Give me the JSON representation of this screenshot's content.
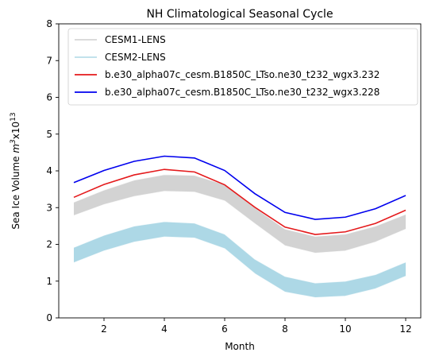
{
  "chart_data": {
    "type": "line",
    "title": "NH Climatological Seasonal Cycle",
    "xlabel": "Month",
    "ylabel_main": "Sea Ice Volume ",
    "ylabel_unit_base": "m",
    "ylabel_unit_sup": "3",
    "ylabel_mult": "x10",
    "ylabel_mult_sup": "13",
    "xlim": [
      0.5,
      12.5
    ],
    "ylim": [
      0,
      8
    ],
    "xticks": [
      2,
      4,
      6,
      8,
      10,
      12
    ],
    "yticks": [
      0,
      1,
      2,
      3,
      4,
      5,
      6,
      7,
      8
    ],
    "grid": false,
    "legend_position": "top-right",
    "x": [
      1,
      2,
      3,
      4,
      5,
      6,
      7,
      8,
      9,
      10,
      11,
      12
    ],
    "bands": [
      {
        "name": "CESM1-LENS",
        "color": "#d3d3d3",
        "lower": [
          2.78,
          3.08,
          3.3,
          3.44,
          3.42,
          3.18,
          2.56,
          1.96,
          1.76,
          1.82,
          2.06,
          2.41
        ],
        "upper": [
          3.15,
          3.48,
          3.75,
          3.9,
          3.88,
          3.63,
          3.0,
          2.42,
          2.22,
          2.28,
          2.5,
          2.82
        ]
      },
      {
        "name": "CESM2-LENS",
        "color": "#add8e6",
        "lower": [
          1.5,
          1.82,
          2.06,
          2.2,
          2.17,
          1.88,
          1.2,
          0.7,
          0.55,
          0.59,
          0.79,
          1.13
        ],
        "upper": [
          1.92,
          2.25,
          2.5,
          2.62,
          2.58,
          2.28,
          1.6,
          1.13,
          0.95,
          1.0,
          1.18,
          1.52
        ]
      }
    ],
    "series": [
      {
        "name": "b.e30_alpha07c_cesm.B1850C_LTso.ne30_t232_wgx3.232",
        "color": "#e41a1c",
        "values": [
          3.28,
          3.63,
          3.89,
          4.04,
          3.97,
          3.62,
          3.01,
          2.47,
          2.27,
          2.34,
          2.57,
          2.93
        ]
      },
      {
        "name": "b.e30_alpha07c_cesm.B1850C_LTso.ne30_t232_wgx3.228",
        "color": "#0000ee",
        "values": [
          3.68,
          4.01,
          4.26,
          4.4,
          4.35,
          4.01,
          3.38,
          2.87,
          2.68,
          2.74,
          2.97,
          3.33
        ]
      }
    ]
  }
}
